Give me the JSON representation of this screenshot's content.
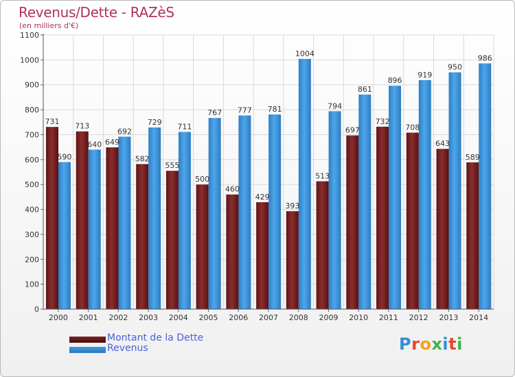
{
  "header": {
    "title": "Revenus/Dette - RAZèS",
    "subtitle": "(en milliers d'€)"
  },
  "colors": {
    "dette": "#7b2424",
    "revenus": "#3f99dd",
    "grid": "#d8d8d8",
    "title": "#b0305f",
    "legend_text": "#4a63d8"
  },
  "legend": {
    "items": [
      {
        "label": "Montant de la Dette"
      },
      {
        "label": "Revenus"
      }
    ]
  },
  "logo": {
    "text": "Proxiti",
    "letter_colors": [
      "#2f8fd8",
      "#e8442a",
      "#f4a21d",
      "#3fb24a",
      "#2f8fd8",
      "#e8442a",
      "#3fb24a"
    ]
  },
  "chart_data": {
    "type": "bar",
    "categories": [
      "2000",
      "2001",
      "2002",
      "2003",
      "2004",
      "2005",
      "2006",
      "2007",
      "2008",
      "2009",
      "2010",
      "2011",
      "2012",
      "2013",
      "2014"
    ],
    "series": [
      {
        "name": "Montant de la Dette",
        "values": [
          731,
          713,
          649,
          582,
          555,
          500,
          460,
          429,
          393,
          513,
          697,
          732,
          708,
          643,
          589
        ]
      },
      {
        "name": "Revenus",
        "values": [
          590,
          640,
          692,
          729,
          711,
          767,
          777,
          781,
          1004,
          794,
          861,
          896,
          919,
          950,
          986
        ]
      }
    ],
    "yticks": [
      0,
      100,
      200,
      300,
      400,
      500,
      600,
      700,
      800,
      900,
      1000,
      1100
    ],
    "ylim": [
      0,
      1100
    ],
    "grid": true,
    "legend_position": "bottom-left"
  }
}
